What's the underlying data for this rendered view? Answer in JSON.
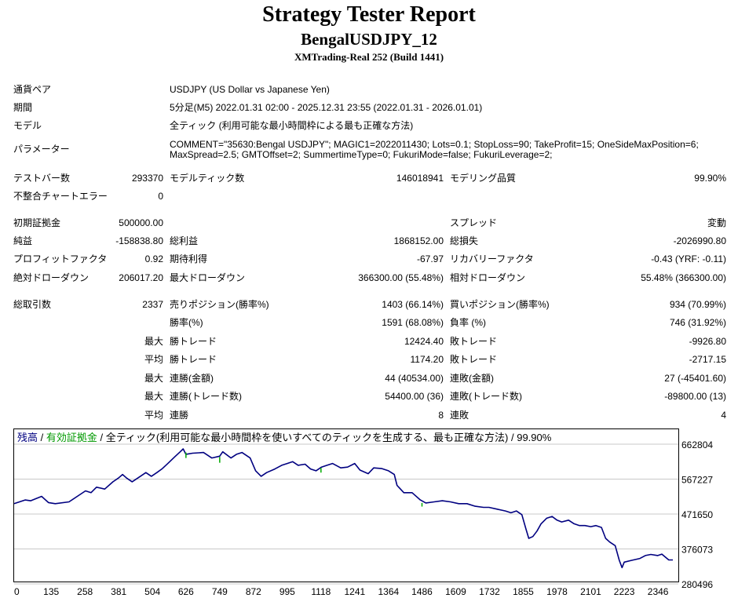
{
  "header": {
    "title": "Strategy Tester Report",
    "subtitle": "BengalUSDJPY_12",
    "build": "XMTrading-Real 252 (Build 1441)"
  },
  "settings": {
    "symbol_label": "通貨ペア",
    "symbol_value": "USDJPY (US Dollar vs Japanese Yen)",
    "period_label": "期間",
    "period_value": "5分足(M5) 2022.01.31 02:00 - 2025.12.31 23:55 (2022.01.31 - 2026.01.01)",
    "model_label": "モデル",
    "model_value": "全ティック (利用可能な最小時間枠による最も正確な方法)",
    "params_label": "パラメーター",
    "params_line1": "COMMENT=\"35630:Bengal USDJPY\"; MAGIC1=2022011430; Lots=0.1; StopLoss=90; TakeProfit=15; OneSideMaxPosition=6;",
    "params_line2": "MaxSpread=2.5; GMTOffset=2; SummertimeType=0; FukuriMode=false; FukuriLeverage=2;"
  },
  "quality": {
    "bars_label": "テストバー数",
    "bars_value": "293370",
    "ticks_label": "モデルティック数",
    "ticks_value": "146018941",
    "quality_label": "モデリング品質",
    "quality_value": "99.90%",
    "errors_label": "不整合チャートエラー",
    "errors_value": "0"
  },
  "money": {
    "deposit_label": "初期証拠金",
    "deposit_value": "500000.00",
    "spread_label": "スプレッド",
    "spread_value": "変動",
    "net_label": "純益",
    "net_value": "-158838.80",
    "gross_profit_label": "総利益",
    "gross_profit_value": "1868152.00",
    "gross_loss_label": "総損失",
    "gross_loss_value": "-2026990.80",
    "pf_label": "プロフィットファクタ",
    "pf_value": "0.92",
    "expected_label": "期待利得",
    "expected_value": "-67.97",
    "recovery_label": "リカバリーファクタ",
    "recovery_value": "-0.43 (YRF: -0.11)",
    "abs_dd_label": "絶対ドローダウン",
    "abs_dd_value": "206017.20",
    "max_dd_label": "最大ドローダウン",
    "max_dd_value": "366300.00 (55.48%)",
    "rel_dd_label": "相対ドローダウン",
    "rel_dd_value": "55.48% (366300.00)"
  },
  "trades": {
    "total_label": "総取引数",
    "total_value": "2337",
    "short_label": "売りポジション(勝率%)",
    "short_value": "1403 (66.14%)",
    "long_label": "買いポジション(勝率%)",
    "long_value": "934 (70.99%)",
    "win_rate_label": "勝率(%)",
    "win_rate_value": "1591 (68.08%)",
    "loss_rate_label": "負率 (%)",
    "loss_rate_value": "746 (31.92%)",
    "max_prefix": "最大",
    "avg_prefix": "平均",
    "largest_win_label": "勝トレード",
    "largest_win_value": "12424.40",
    "largest_loss_label": "敗トレード",
    "largest_loss_value": "-9926.80",
    "avg_win_label": "勝トレード",
    "avg_win_value": "1174.20",
    "avg_loss_label": "敗トレード",
    "avg_loss_value": "-2717.15",
    "max_consec_wins_amt_label": "連勝(金額)",
    "max_consec_wins_amt_value": "44 (40534.00)",
    "max_consec_losses_amt_label": "連敗(金額)",
    "max_consec_losses_amt_value": "27 (-45401.60)",
    "max_consec_profit_label": "連勝(トレード数)",
    "max_consec_profit_value": "54400.00 (36)",
    "max_consec_loss_label": "連敗(トレード数)",
    "max_consec_loss_value": "-89800.00 (13)",
    "avg_consec_wins_label": "連勝",
    "avg_consec_wins_value": "8",
    "avg_consec_losses_label": "連敗",
    "avg_consec_losses_value": "4"
  },
  "chart_legend": {
    "balance": "残高",
    "sep1": " / ",
    "equity": "有効証拠金",
    "rest": " / 全ティック(利用可能な最小時間枠を使いすべてのティックを生成する、最も正確な方法) / 99.90%"
  },
  "colors": {
    "balance_line": "#000080",
    "equity_marks": "#00aa00",
    "grid": "#c8c8c8"
  },
  "chart_data": {
    "type": "line",
    "xlabel": "",
    "ylabel": "",
    "x_ticks": [
      "0",
      "135",
      "258",
      "381",
      "504",
      "626",
      "749",
      "872",
      "995",
      "1118",
      "1241",
      "1364",
      "1486",
      "1609",
      "1732",
      "1855",
      "1978",
      "2101",
      "2223",
      "2346"
    ],
    "y_ticks": [
      "662804",
      "567227",
      "471650",
      "376073",
      "280496"
    ],
    "ylim": [
      280496,
      662804
    ],
    "xlim": [
      0,
      2420
    ],
    "grid": true,
    "series": [
      {
        "values": [
          [
            0,
            500000
          ],
          [
            40,
            510000
          ],
          [
            60,
            508000
          ],
          [
            100,
            520000
          ],
          [
            125,
            503000
          ],
          [
            150,
            500000
          ],
          [
            200,
            505000
          ],
          [
            230,
            520000
          ],
          [
            260,
            535000
          ],
          [
            280,
            530000
          ],
          [
            300,
            545000
          ],
          [
            330,
            540000
          ],
          [
            360,
            560000
          ],
          [
            380,
            570000
          ],
          [
            395,
            580000
          ],
          [
            410,
            570000
          ],
          [
            430,
            560000
          ],
          [
            460,
            575000
          ],
          [
            480,
            585000
          ],
          [
            500,
            575000
          ],
          [
            520,
            585000
          ],
          [
            540,
            596000
          ],
          [
            560,
            610000
          ],
          [
            585,
            628000
          ],
          [
            605,
            642000
          ],
          [
            616,
            650000
          ],
          [
            626,
            635000
          ],
          [
            650,
            638000
          ],
          [
            690,
            640000
          ],
          [
            720,
            625000
          ],
          [
            749,
            630000
          ],
          [
            760,
            642000
          ],
          [
            790,
            625000
          ],
          [
            810,
            635000
          ],
          [
            830,
            640000
          ],
          [
            860,
            625000
          ],
          [
            880,
            590000
          ],
          [
            900,
            575000
          ],
          [
            920,
            585000
          ],
          [
            950,
            595000
          ],
          [
            975,
            605000
          ],
          [
            995,
            610000
          ],
          [
            1015,
            615000
          ],
          [
            1035,
            605000
          ],
          [
            1060,
            608000
          ],
          [
            1080,
            595000
          ],
          [
            1100,
            590000
          ],
          [
            1120,
            600000
          ],
          [
            1140,
            605000
          ],
          [
            1160,
            610000
          ],
          [
            1190,
            598000
          ],
          [
            1215,
            600000
          ],
          [
            1241,
            610000
          ],
          [
            1260,
            592000
          ],
          [
            1290,
            582000
          ],
          [
            1310,
            598000
          ],
          [
            1340,
            596000
          ],
          [
            1364,
            590000
          ],
          [
            1385,
            580000
          ],
          [
            1395,
            550000
          ],
          [
            1420,
            530000
          ],
          [
            1450,
            530000
          ],
          [
            1480,
            510000
          ],
          [
            1500,
            502000
          ],
          [
            1530,
            505000
          ],
          [
            1560,
            508000
          ],
          [
            1590,
            505000
          ],
          [
            1620,
            500000
          ],
          [
            1650,
            500000
          ],
          [
            1680,
            493000
          ],
          [
            1710,
            490000
          ],
          [
            1730,
            490000
          ],
          [
            1760,
            485000
          ],
          [
            1790,
            480000
          ],
          [
            1810,
            475000
          ],
          [
            1830,
            480000
          ],
          [
            1850,
            470000
          ],
          [
            1865,
            430000
          ],
          [
            1875,
            405000
          ],
          [
            1890,
            410000
          ],
          [
            1905,
            425000
          ],
          [
            1920,
            445000
          ],
          [
            1940,
            460000
          ],
          [
            1960,
            465000
          ],
          [
            1978,
            455000
          ],
          [
            1995,
            450000
          ],
          [
            2020,
            455000
          ],
          [
            2040,
            445000
          ],
          [
            2060,
            440000
          ],
          [
            2080,
            440000
          ],
          [
            2101,
            437000
          ],
          [
            2120,
            440000
          ],
          [
            2140,
            435000
          ],
          [
            2155,
            405000
          ],
          [
            2170,
            395000
          ],
          [
            2190,
            385000
          ],
          [
            2205,
            345000
          ],
          [
            2215,
            325000
          ],
          [
            2223,
            340000
          ],
          [
            2250,
            345000
          ],
          [
            2280,
            350000
          ],
          [
            2300,
            358000
          ],
          [
            2320,
            361000
          ],
          [
            2345,
            358000
          ],
          [
            2360,
            362000
          ],
          [
            2385,
            346000
          ],
          [
            2400,
            346000
          ]
        ]
      }
    ]
  }
}
